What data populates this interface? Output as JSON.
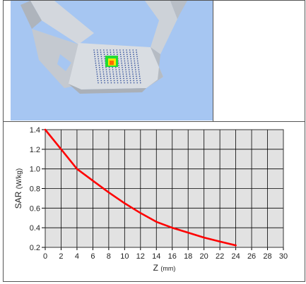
{
  "colors": {
    "curve": "#ff0000",
    "plot_bg": "#e2e2e2",
    "grid": "#000000",
    "sky": "#a6c6f2"
  },
  "chart_data": {
    "type": "line",
    "xlabel_main": "Z",
    "xlabel_unit": "(mm)",
    "ylabel_main": "SAR",
    "ylabel_unit": "(W/kg)",
    "xlim": [
      0,
      30
    ],
    "ylim": [
      0.2,
      1.4
    ],
    "xticks": [
      0,
      2,
      4,
      6,
      8,
      10,
      12,
      14,
      16,
      18,
      20,
      22,
      24,
      26,
      28,
      30
    ],
    "yticks": [
      0.2,
      0.4,
      0.6,
      0.8,
      1.0,
      1.2,
      1.4
    ],
    "ytick_labels": [
      "0.2",
      "0.4",
      "0.6",
      "0.8",
      "1.0",
      "1.2",
      "1.4"
    ],
    "grid": true,
    "series": [
      {
        "x": [
          0,
          2,
          4,
          6,
          8,
          10,
          12,
          14,
          16,
          18,
          20,
          22,
          24
        ],
        "y": [
          1.4,
          1.2,
          1.0,
          0.88,
          0.76,
          0.65,
          0.55,
          0.46,
          0.4,
          0.35,
          0.3,
          0.26,
          0.22
        ]
      }
    ]
  }
}
